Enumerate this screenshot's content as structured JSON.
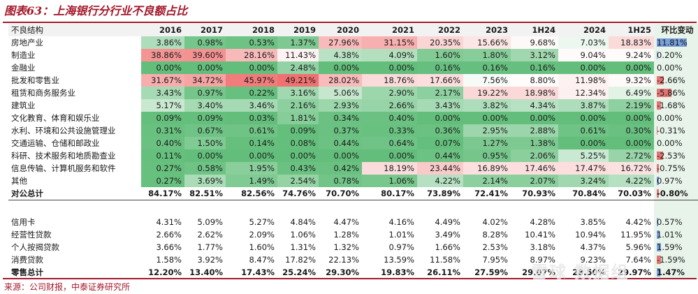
{
  "title": "图表63：上海银行分行业不良额占比",
  "source": "来源：公司财报，中泰证券研究所",
  "watermark": "雪球 数据组",
  "header": [
    "不良结构",
    "2016",
    "2017",
    "2018",
    "2019",
    "2020",
    "2021",
    "2022",
    "2023",
    "1H24",
    "2024",
    "1H25",
    "环比变动"
  ],
  "rows": [
    {
      "label": "房地产业",
      "values": [
        "3.86%",
        "0.98%",
        "0.53%",
        "1.37%",
        "27.96%",
        "31.15%",
        "20.35%",
        "15.66%",
        "9.68%",
        "7.03%",
        "18.83%"
      ],
      "nums": [
        3.86,
        0.98,
        0.53,
        1.37,
        27.96,
        31.15,
        20.35,
        15.66,
        9.68,
        7.03,
        18.83
      ],
      "change": "11.81%",
      "chg": 11.81
    },
    {
      "label": "制造业",
      "values": [
        "38.86%",
        "39.60%",
        "28.16%",
        "11.43%",
        "4.38%",
        "4.09%",
        "1.60%",
        "1.80%",
        "3.12%",
        "9.04%",
        "9.24%"
      ],
      "nums": [
        38.86,
        39.6,
        28.16,
        11.43,
        4.38,
        4.09,
        1.6,
        1.8,
        3.12,
        9.04,
        9.24
      ],
      "change": "0.20%",
      "chg": 0.2
    },
    {
      "label": "金融业",
      "values": [
        "0.00%",
        "0.00%",
        "0.00%",
        "2.48%",
        "0.00%",
        "0.00%",
        "0.16%",
        "0.16%",
        "0.16%",
        "0.00%",
        "0.00%"
      ],
      "nums": [
        0,
        0,
        0,
        2.48,
        0,
        0,
        0.16,
        0.16,
        0.16,
        0,
        0
      ],
      "change": "0.00%",
      "chg": 0.0
    },
    {
      "label": "批发和零售业",
      "values": [
        "31.67%",
        "34.72%",
        "45.97%",
        "49.21%",
        "28.02%",
        "18.76%",
        "17.66%",
        "7.56%",
        "8.80%",
        "11.98%",
        "9.32%"
      ],
      "nums": [
        31.67,
        34.72,
        45.97,
        49.21,
        28.02,
        18.76,
        17.66,
        7.56,
        8.8,
        11.98,
        9.32
      ],
      "change": "-2.66%",
      "chg": -2.66
    },
    {
      "label": "租赁和商务服务业",
      "values": [
        "3.43%",
        "0.97%",
        "0.22%",
        "3.16%",
        "5.06%",
        "2.90%",
        "2.17%",
        "19.22%",
        "18.98%",
        "12.34%",
        "6.49%"
      ],
      "nums": [
        3.43,
        0.97,
        0.22,
        3.16,
        5.06,
        2.9,
        2.17,
        19.22,
        18.98,
        12.34,
        6.49
      ],
      "change": "-5.86%",
      "chg": -5.86
    },
    {
      "label": "建筑业",
      "values": [
        "5.17%",
        "3.40%",
        "3.46%",
        "2.16%",
        "2.93%",
        "2.66%",
        "3.43%",
        "3.82%",
        "4.34%",
        "3.87%",
        "2.19%"
      ],
      "nums": [
        5.17,
        3.4,
        3.46,
        2.16,
        2.93,
        2.66,
        3.43,
        3.82,
        4.34,
        3.87,
        2.19
      ],
      "change": "-1.68%",
      "chg": -1.68
    },
    {
      "label": "文化教育、体育和娱乐业",
      "values": [
        "0.09%",
        "0.09%",
        "0.03%",
        "1.81%",
        "0.34%",
        "0.40%",
        "0.00%",
        "0.00%",
        "0.00%",
        "0.00%",
        "0.00%"
      ],
      "nums": [
        0.09,
        0.09,
        0.03,
        1.81,
        0.34,
        0.4,
        0,
        0,
        0,
        0,
        0
      ],
      "change": "0.00%",
      "chg": 0.0
    },
    {
      "label": "水利、环境和公共设施管理业",
      "values": [
        "0.31%",
        "0.67%",
        "0.61%",
        "0.09%",
        "0.37%",
        "0.33%",
        "0.36%",
        "2.95%",
        "2.88%",
        "0.61%",
        "0.30%"
      ],
      "nums": [
        0.31,
        0.67,
        0.61,
        0.09,
        0.37,
        0.33,
        0.36,
        2.95,
        2.88,
        0.61,
        0.3
      ],
      "change": "-0.31%",
      "chg": -0.31
    },
    {
      "label": "交通运输、仓储和邮政业",
      "values": [
        "0.40%",
        "1.50%",
        "0.14%",
        "0.08%",
        "0.44%",
        "0.64%",
        "0.07%",
        "1.27%",
        "1.38%",
        "0.00%",
        "0.00%"
      ],
      "nums": [
        0.4,
        1.5,
        0.14,
        0.08,
        0.44,
        0.64,
        0.07,
        1.27,
        1.38,
        0,
        0
      ],
      "change": "0.00%",
      "chg": 0.0
    },
    {
      "label": "科研、技术服务和地质勘查业",
      "values": [
        "0.11%",
        "0.00%",
        "0.00%",
        "0.00%",
        "0.00%",
        "0.00%",
        "0.44%",
        "0.95%",
        "2.06%",
        "5.25%",
        "2.72%"
      ],
      "nums": [
        0.11,
        0,
        0,
        0,
        0,
        0,
        0.44,
        0.95,
        2.06,
        5.25,
        2.72
      ],
      "change": "-2.53%",
      "chg": -2.53
    },
    {
      "label": "信息传输、计算机服务和软件",
      "values": [
        "0.27%",
        "0.58%",
        "1.95%",
        "0.43%",
        "0.42%",
        "18.19%",
        "23.44%",
        "16.89%",
        "17.46%",
        "17.47%",
        "16.72%"
      ],
      "nums": [
        0.27,
        0.58,
        1.95,
        0.43,
        0.42,
        18.19,
        23.44,
        16.89,
        17.46,
        17.47,
        16.72
      ],
      "change": "-0.75%",
      "chg": -0.75
    },
    {
      "label": "其他",
      "values": [
        "0.27%",
        "3.69%",
        "1.49%",
        "2.54%",
        "0.78%",
        "1.06%",
        "4.22%",
        "2.14%",
        "2.07%",
        "3.24%",
        "4.22%"
      ],
      "nums": [
        0.27,
        3.69,
        1.49,
        2.54,
        0.78,
        1.06,
        4.22,
        2.14,
        2.07,
        3.24,
        4.22
      ],
      "change": "0.97%",
      "chg": 0.97
    }
  ],
  "corporate_total": {
    "label": "对公总计",
    "values": [
      "84.17%",
      "82.51%",
      "82.56%",
      "74.76%",
      "70.70%",
      "80.17%",
      "73.89%",
      "72.41%",
      "70.93%",
      "70.84%",
      "70.03%"
    ],
    "change": "-0.80%",
    "chg": -0.8
  },
  "retail_rows": [
    {
      "label": "信用卡",
      "values": [
        "4.31%",
        "5.09%",
        "5.27%",
        "4.84%",
        "4.47%",
        "4.16%",
        "4.49%",
        "4.02%",
        "4.28%",
        "3.85%",
        "4.42%"
      ],
      "nums": [
        4.31,
        5.09,
        5.27,
        4.84,
        4.47,
        4.16,
        4.49,
        4.02,
        4.28,
        3.85,
        4.42
      ],
      "change": "0.57%",
      "chg": 0.57
    },
    {
      "label": "经营性贷款",
      "values": [
        "2.66%",
        "2.62%",
        "2.09%",
        "1.06%",
        "1.28%",
        "1.01%",
        "3.49%",
        "8.28%",
        "10.41%",
        "10.94%",
        "11.95%"
      ],
      "nums": [
        2.66,
        2.62,
        2.09,
        1.06,
        1.28,
        1.01,
        3.49,
        8.28,
        10.41,
        10.94,
        11.95
      ],
      "change": "1.01%",
      "chg": 1.01
    },
    {
      "label": "个人按揭贷款",
      "values": [
        "3.66%",
        "1.77%",
        "1.60%",
        "1.31%",
        "1.32%",
        "0.97%",
        "1.66%",
        "2.53%",
        "3.18%",
        "4.37%",
        "5.96%"
      ],
      "nums": [
        3.66,
        1.77,
        1.6,
        1.31,
        1.32,
        0.97,
        1.66,
        2.53,
        3.18,
        4.37,
        5.96
      ],
      "change": "1.59%",
      "chg": 1.59
    },
    {
      "label": "消费贷款",
      "values": [
        "1.58%",
        "3.92%",
        "8.47%",
        "17.82%",
        "22.13%",
        "13.59%",
        "11.58%",
        "7.95%",
        "8.97%",
        "9.23%",
        "7.64%"
      ],
      "nums": [
        1.58,
        3.92,
        8.47,
        17.82,
        22.13,
        13.59,
        11.58,
        7.95,
        8.97,
        9.23,
        7.64
      ],
      "change": "-1.59%",
      "chg": -1.59
    }
  ],
  "retail_total": {
    "label": "零售总计",
    "values": [
      "12.20%",
      "13.40%",
      "17.43%",
      "25.24%",
      "29.30%",
      "19.83%",
      "26.11%",
      "27.59%",
      "29.07%",
      "28.50%",
      "29.97%"
    ],
    "change": "1.47%",
    "chg": 1.47
  },
  "colors": {
    "accent": "#a3182a",
    "high": "#f08080",
    "low": "#63be7b",
    "pos_bar": "#5b8bd6",
    "neg_bar": "#e05555",
    "chg_bg": "#e8f4ea"
  }
}
